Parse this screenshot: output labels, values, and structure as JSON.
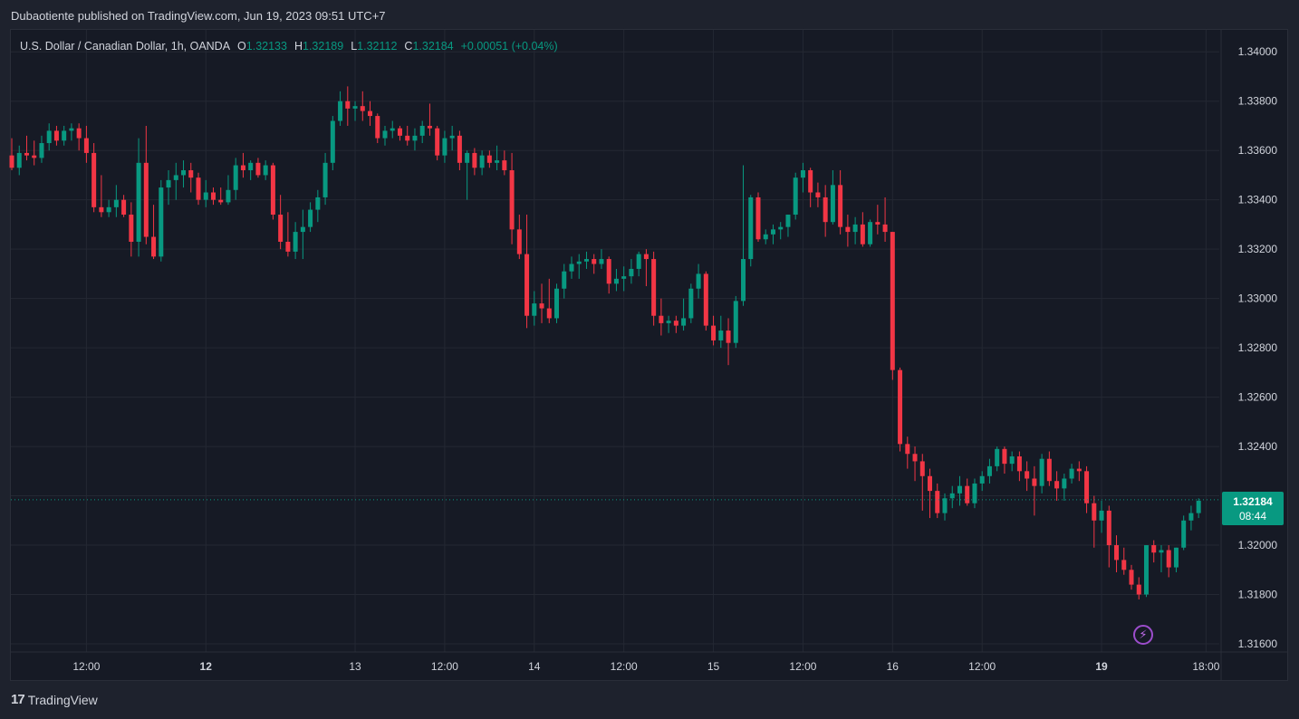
{
  "header": {
    "publisher_text": "Dubaotiente published on TradingView.com, Jun 19, 2023 09:51 UTC+7"
  },
  "legend": {
    "symbol": "U.S. Dollar / Canadian Dollar, 1h, OANDA",
    "open_label": "O",
    "open_value": "1.32133",
    "high_label": "H",
    "high_value": "1.32189",
    "low_label": "L",
    "low_value": "1.32112",
    "close_label": "C",
    "close_value": "1.32184",
    "change": "+0.00051 (+0.04%)"
  },
  "price_badge": {
    "price": "1.32184",
    "countdown": "08:44"
  },
  "footer": {
    "logo_mark": "17",
    "logo_text": "TradingView"
  },
  "colors": {
    "up": "#089981",
    "down": "#f23645",
    "background": "#161a25",
    "grid": "#242833",
    "axis_text": "#d1d4dc"
  },
  "chart_data": {
    "type": "candlestick",
    "symbol": "USDCAD",
    "interval": "1h",
    "ylim": [
      1.3155,
      1.3414
    ],
    "y_ticks": [
      "1.34000",
      "1.33800",
      "1.33600",
      "1.33400",
      "1.33200",
      "1.33000",
      "1.32800",
      "1.32600",
      "1.32400",
      "1.32200",
      "1.32000",
      "1.31800",
      "1.31600"
    ],
    "x_ticks": [
      {
        "label": "12:00",
        "bar": 10,
        "bold": false
      },
      {
        "label": "12",
        "bar": 26,
        "bold": true
      },
      {
        "label": "13",
        "bar": 46,
        "bold": false
      },
      {
        "label": "12:00",
        "bar": 58,
        "bold": false
      },
      {
        "label": "14",
        "bar": 70,
        "bold": false
      },
      {
        "label": "12:00",
        "bar": 82,
        "bold": false
      },
      {
        "label": "15",
        "bar": 94,
        "bold": false
      },
      {
        "label": "12:00",
        "bar": 106,
        "bold": false
      },
      {
        "label": "16",
        "bar": 118,
        "bold": false
      },
      {
        "label": "12:00",
        "bar": 130,
        "bold": false
      },
      {
        "label": "19",
        "bar": 146,
        "bold": true
      },
      {
        "label": "18:00",
        "bar": 160,
        "bold": false
      }
    ],
    "last_price": 1.32184,
    "grid": true,
    "candles": [
      [
        1.3358,
        1.3365,
        1.3352,
        1.3353
      ],
      [
        1.3353,
        1.3362,
        1.335,
        1.3359
      ],
      [
        1.3359,
        1.3366,
        1.3356,
        1.3358
      ],
      [
        1.3358,
        1.3364,
        1.3354,
        1.3357
      ],
      [
        1.3357,
        1.3366,
        1.3355,
        1.3363
      ],
      [
        1.3363,
        1.3371,
        1.336,
        1.3368
      ],
      [
        1.3368,
        1.337,
        1.3362,
        1.3364
      ],
      [
        1.3364,
        1.337,
        1.3362,
        1.3368
      ],
      [
        1.3368,
        1.3371,
        1.3364,
        1.3369
      ],
      [
        1.3369,
        1.3371,
        1.336,
        1.3365
      ],
      [
        1.3365,
        1.337,
        1.3355,
        1.3359
      ],
      [
        1.3359,
        1.3363,
        1.3335,
        1.3337
      ],
      [
        1.3337,
        1.335,
        1.3333,
        1.3335
      ],
      [
        1.3335,
        1.334,
        1.3333,
        1.3337
      ],
      [
        1.3337,
        1.3346,
        1.3333,
        1.334
      ],
      [
        1.334,
        1.3342,
        1.3333,
        1.3334
      ],
      [
        1.3334,
        1.3339,
        1.3317,
        1.3323
      ],
      [
        1.3323,
        1.3365,
        1.3317,
        1.3355
      ],
      [
        1.3355,
        1.337,
        1.3322,
        1.3325
      ],
      [
        1.3325,
        1.3338,
        1.3316,
        1.3317
      ],
      [
        1.3317,
        1.3348,
        1.3315,
        1.3345
      ],
      [
        1.3345,
        1.3352,
        1.3338,
        1.3348
      ],
      [
        1.3348,
        1.3355,
        1.334,
        1.335
      ],
      [
        1.335,
        1.3356,
        1.3345,
        1.3352
      ],
      [
        1.3352,
        1.3355,
        1.3343,
        1.3349
      ],
      [
        1.3349,
        1.3351,
        1.3338,
        1.334
      ],
      [
        1.334,
        1.3348,
        1.3337,
        1.3343
      ],
      [
        1.3343,
        1.3345,
        1.3338,
        1.334
      ],
      [
        1.334,
        1.3345,
        1.3338,
        1.3339
      ],
      [
        1.3339,
        1.335,
        1.3338,
        1.3344
      ],
      [
        1.3344,
        1.3357,
        1.334,
        1.3354
      ],
      [
        1.3354,
        1.3359,
        1.3349,
        1.3352
      ],
      [
        1.3352,
        1.3356,
        1.3348,
        1.3355
      ],
      [
        1.3355,
        1.3357,
        1.3349,
        1.335
      ],
      [
        1.335,
        1.3356,
        1.3348,
        1.3354
      ],
      [
        1.3354,
        1.3355,
        1.3332,
        1.3334
      ],
      [
        1.3334,
        1.3342,
        1.332,
        1.3323
      ],
      [
        1.3323,
        1.3335,
        1.3317,
        1.3319
      ],
      [
        1.3319,
        1.3331,
        1.3316,
        1.3327
      ],
      [
        1.3327,
        1.3336,
        1.3316,
        1.3329
      ],
      [
        1.3329,
        1.3339,
        1.3327,
        1.3336
      ],
      [
        1.3336,
        1.3344,
        1.3331,
        1.3341
      ],
      [
        1.3341,
        1.3359,
        1.3338,
        1.3355
      ],
      [
        1.3355,
        1.3374,
        1.3352,
        1.3372
      ],
      [
        1.3372,
        1.3384,
        1.337,
        1.338
      ],
      [
        1.338,
        1.3386,
        1.337,
        1.3377
      ],
      [
        1.3377,
        1.338,
        1.3372,
        1.3378
      ],
      [
        1.3378,
        1.3384,
        1.3372,
        1.3376
      ],
      [
        1.3376,
        1.338,
        1.337,
        1.3374
      ],
      [
        1.3374,
        1.3375,
        1.3363,
        1.3365
      ],
      [
        1.3365,
        1.337,
        1.3362,
        1.3368
      ],
      [
        1.3368,
        1.3372,
        1.3365,
        1.3369
      ],
      [
        1.3369,
        1.337,
        1.3364,
        1.3366
      ],
      [
        1.3366,
        1.337,
        1.3362,
        1.3364
      ],
      [
        1.3364,
        1.3369,
        1.336,
        1.3366
      ],
      [
        1.3366,
        1.3372,
        1.3363,
        1.337
      ],
      [
        1.337,
        1.3379,
        1.3366,
        1.3369
      ],
      [
        1.3369,
        1.337,
        1.3356,
        1.3358
      ],
      [
        1.3358,
        1.3368,
        1.3355,
        1.3365
      ],
      [
        1.3365,
        1.337,
        1.336,
        1.3366
      ],
      [
        1.3366,
        1.3368,
        1.3352,
        1.3355
      ],
      [
        1.3355,
        1.336,
        1.334,
        1.3359
      ],
      [
        1.3359,
        1.3361,
        1.335,
        1.3353
      ],
      [
        1.3353,
        1.336,
        1.335,
        1.3358
      ],
      [
        1.3358,
        1.336,
        1.3353,
        1.3355
      ],
      [
        1.3355,
        1.3362,
        1.3352,
        1.3356
      ],
      [
        1.3356,
        1.336,
        1.335,
        1.3352
      ],
      [
        1.3352,
        1.3359,
        1.3322,
        1.3328
      ],
      [
        1.3328,
        1.3334,
        1.3316,
        1.3318
      ],
      [
        1.3318,
        1.3334,
        1.3288,
        1.3293
      ],
      [
        1.3293,
        1.3303,
        1.3289,
        1.3298
      ],
      [
        1.3298,
        1.3306,
        1.329,
        1.3296
      ],
      [
        1.3296,
        1.3308,
        1.329,
        1.3292
      ],
      [
        1.3292,
        1.3306,
        1.329,
        1.3304
      ],
      [
        1.3304,
        1.3314,
        1.33,
        1.3311
      ],
      [
        1.3311,
        1.3317,
        1.3308,
        1.3314
      ],
      [
        1.3314,
        1.3318,
        1.3308,
        1.3315
      ],
      [
        1.3315,
        1.3319,
        1.3312,
        1.3316
      ],
      [
        1.3316,
        1.3318,
        1.331,
        1.3314
      ],
      [
        1.3314,
        1.332,
        1.3312,
        1.3316
      ],
      [
        1.3316,
        1.3317,
        1.3302,
        1.3306
      ],
      [
        1.3306,
        1.3312,
        1.3303,
        1.3308
      ],
      [
        1.3308,
        1.3313,
        1.3303,
        1.3309
      ],
      [
        1.3309,
        1.3316,
        1.3306,
        1.3312
      ],
      [
        1.3312,
        1.3319,
        1.3309,
        1.3318
      ],
      [
        1.3318,
        1.332,
        1.3305,
        1.3316
      ],
      [
        1.3316,
        1.3319,
        1.3289,
        1.3293
      ],
      [
        1.3293,
        1.33,
        1.3285,
        1.329
      ],
      [
        1.329,
        1.3293,
        1.3286,
        1.3291
      ],
      [
        1.3291,
        1.3293,
        1.3286,
        1.3289
      ],
      [
        1.3289,
        1.33,
        1.3287,
        1.3292
      ],
      [
        1.3292,
        1.3306,
        1.329,
        1.3304
      ],
      [
        1.3304,
        1.3314,
        1.33,
        1.331
      ],
      [
        1.331,
        1.3311,
        1.3287,
        1.3289
      ],
      [
        1.3289,
        1.3293,
        1.3281,
        1.3283
      ],
      [
        1.3283,
        1.3293,
        1.328,
        1.3287
      ],
      [
        1.3287,
        1.3292,
        1.3273,
        1.3282
      ],
      [
        1.3282,
        1.3301,
        1.328,
        1.3299
      ],
      [
        1.3299,
        1.3354,
        1.3297,
        1.3316
      ],
      [
        1.3316,
        1.3342,
        1.3313,
        1.3341
      ],
      [
        1.3341,
        1.3343,
        1.3323,
        1.3324
      ],
      [
        1.3324,
        1.3328,
        1.3322,
        1.3326
      ],
      [
        1.3326,
        1.333,
        1.3322,
        1.3328
      ],
      [
        1.3328,
        1.3331,
        1.3324,
        1.3329
      ],
      [
        1.3329,
        1.3334,
        1.3325,
        1.3334
      ],
      [
        1.3334,
        1.3351,
        1.3332,
        1.3349
      ],
      [
        1.3349,
        1.3355,
        1.3343,
        1.3352
      ],
      [
        1.3352,
        1.3353,
        1.3337,
        1.3343
      ],
      [
        1.3343,
        1.3347,
        1.3337,
        1.3341
      ],
      [
        1.3341,
        1.3346,
        1.3325,
        1.3331
      ],
      [
        1.3331,
        1.3352,
        1.333,
        1.3346
      ],
      [
        1.3346,
        1.3352,
        1.3326,
        1.3329
      ],
      [
        1.3329,
        1.3334,
        1.3321,
        1.3327
      ],
      [
        1.3327,
        1.3333,
        1.3322,
        1.333
      ],
      [
        1.333,
        1.3335,
        1.3321,
        1.3322
      ],
      [
        1.3322,
        1.3332,
        1.3321,
        1.3331
      ],
      [
        1.3331,
        1.3338,
        1.3326,
        1.333
      ],
      [
        1.333,
        1.3341,
        1.3323,
        1.3327
      ],
      [
        1.3327,
        1.3327,
        1.3267,
        1.3271
      ],
      [
        1.3271,
        1.3272,
        1.3238,
        1.3241
      ],
      [
        1.3241,
        1.3244,
        1.3231,
        1.3237
      ],
      [
        1.3237,
        1.324,
        1.3226,
        1.3234
      ],
      [
        1.3234,
        1.3237,
        1.3214,
        1.3228
      ],
      [
        1.3228,
        1.3231,
        1.3211,
        1.3222
      ],
      [
        1.3222,
        1.3225,
        1.3211,
        1.3213
      ],
      [
        1.3213,
        1.3221,
        1.321,
        1.3219
      ],
      [
        1.3219,
        1.3224,
        1.3215,
        1.3221
      ],
      [
        1.3221,
        1.3228,
        1.3216,
        1.3224
      ],
      [
        1.3224,
        1.3227,
        1.3216,
        1.3217
      ],
      [
        1.3217,
        1.3227,
        1.3215,
        1.3225
      ],
      [
        1.3225,
        1.323,
        1.3222,
        1.3228
      ],
      [
        1.3228,
        1.3235,
        1.3225,
        1.3232
      ],
      [
        1.3232,
        1.324,
        1.323,
        1.3239
      ],
      [
        1.3239,
        1.324,
        1.3229,
        1.3233
      ],
      [
        1.3233,
        1.3238,
        1.323,
        1.3236
      ],
      [
        1.3236,
        1.3238,
        1.3226,
        1.323
      ],
      [
        1.323,
        1.3234,
        1.3222,
        1.3227
      ],
      [
        1.3227,
        1.3232,
        1.3212,
        1.3224
      ],
      [
        1.3224,
        1.3237,
        1.3221,
        1.3235
      ],
      [
        1.3235,
        1.3238,
        1.3224,
        1.3226
      ],
      [
        1.3226,
        1.323,
        1.3218,
        1.3223
      ],
      [
        1.3223,
        1.3229,
        1.3218,
        1.3227
      ],
      [
        1.3227,
        1.3233,
        1.3225,
        1.3231
      ],
      [
        1.3231,
        1.3234,
        1.3226,
        1.323
      ],
      [
        1.323,
        1.3232,
        1.3213,
        1.3217
      ],
      [
        1.3217,
        1.322,
        1.3199,
        1.321
      ],
      [
        1.321,
        1.3218,
        1.3205,
        1.3214
      ],
      [
        1.3214,
        1.3216,
        1.3191,
        1.32
      ],
      [
        1.32,
        1.3204,
        1.3189,
        1.3194
      ],
      [
        1.3194,
        1.3199,
        1.3188,
        1.319
      ],
      [
        1.319,
        1.3192,
        1.3182,
        1.3184
      ],
      [
        1.3184,
        1.3187,
        1.3178,
        1.318
      ],
      [
        1.318,
        1.32,
        1.3179,
        1.32
      ],
      [
        1.32,
        1.3202,
        1.3193,
        1.3197
      ],
      [
        1.3197,
        1.32,
        1.3189,
        1.3198
      ],
      [
        1.3198,
        1.32,
        1.3187,
        1.3191
      ],
      [
        1.3191,
        1.3199,
        1.3189,
        1.3199
      ],
      [
        1.3199,
        1.3212,
        1.3198,
        1.321
      ],
      [
        1.321,
        1.3216,
        1.3206,
        1.3213
      ],
      [
        1.3213,
        1.3219,
        1.3211,
        1.3218
      ]
    ]
  }
}
